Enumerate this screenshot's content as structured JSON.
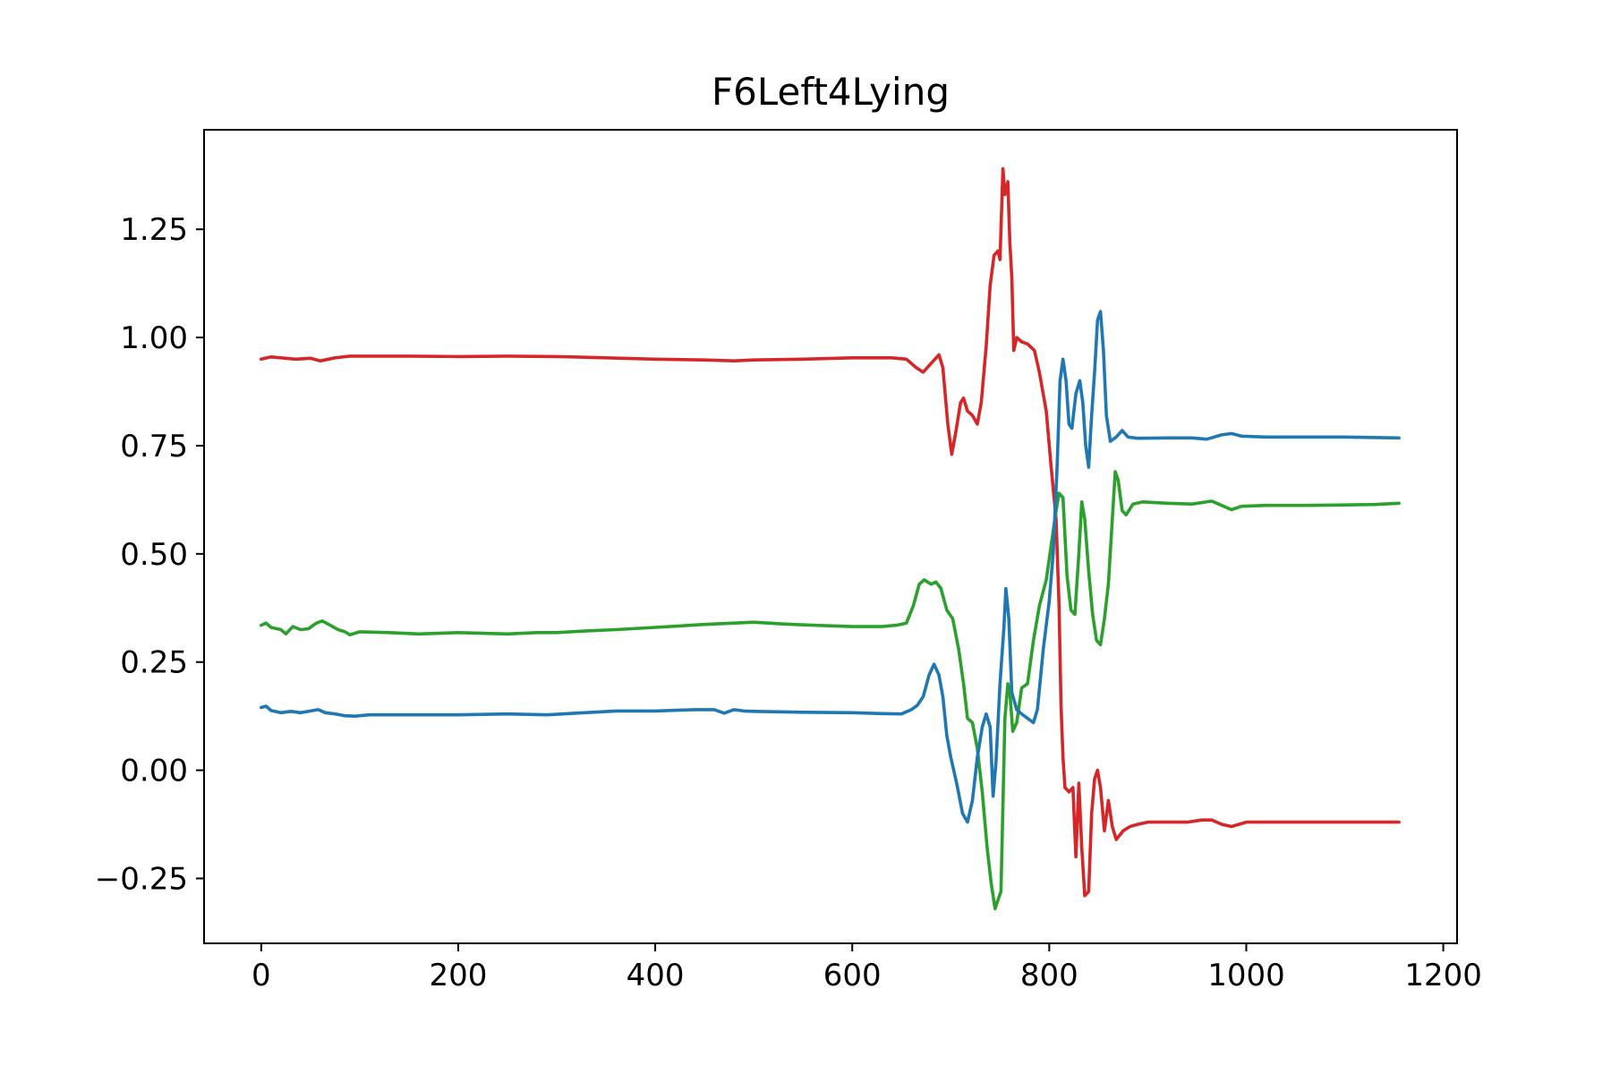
{
  "chart_data": {
    "type": "line",
    "title": "F6Left4Lying",
    "xlabel": "",
    "ylabel": "",
    "xlim": [
      -58,
      1214
    ],
    "ylim": [
      -0.4,
      1.48
    ],
    "grid": false,
    "legend": "none",
    "x_ticks": [
      {
        "value": 0,
        "label": "0"
      },
      {
        "value": 200,
        "label": "200"
      },
      {
        "value": 400,
        "label": "400"
      },
      {
        "value": 600,
        "label": "600"
      },
      {
        "value": 800,
        "label": "800"
      },
      {
        "value": 1000,
        "label": "1000"
      },
      {
        "value": 1200,
        "label": "1200"
      }
    ],
    "y_ticks": [
      {
        "value": -0.25,
        "label": "−0.25"
      },
      {
        "value": 0.0,
        "label": "0.00"
      },
      {
        "value": 0.25,
        "label": "0.25"
      },
      {
        "value": 0.5,
        "label": "0.50"
      },
      {
        "value": 0.75,
        "label": "0.75"
      },
      {
        "value": 1.0,
        "label": "1.00"
      },
      {
        "value": 1.25,
        "label": "1.25"
      }
    ],
    "series": [
      {
        "color": "#d62728",
        "points": [
          [
            0,
            0.95
          ],
          [
            10,
            0.955
          ],
          [
            20,
            0.953
          ],
          [
            35,
            0.95
          ],
          [
            50,
            0.952
          ],
          [
            60,
            0.946
          ],
          [
            75,
            0.953
          ],
          [
            90,
            0.957
          ],
          [
            150,
            0.957
          ],
          [
            200,
            0.956
          ],
          [
            250,
            0.957
          ],
          [
            300,
            0.956
          ],
          [
            350,
            0.953
          ],
          [
            400,
            0.95
          ],
          [
            450,
            0.948
          ],
          [
            480,
            0.946
          ],
          [
            500,
            0.948
          ],
          [
            550,
            0.95
          ],
          [
            600,
            0.953
          ],
          [
            640,
            0.953
          ],
          [
            655,
            0.95
          ],
          [
            665,
            0.93
          ],
          [
            672,
            0.92
          ],
          [
            680,
            0.94
          ],
          [
            688,
            0.96
          ],
          [
            692,
            0.93
          ],
          [
            697,
            0.8
          ],
          [
            701,
            0.73
          ],
          [
            705,
            0.78
          ],
          [
            710,
            0.85
          ],
          [
            713,
            0.86
          ],
          [
            717,
            0.83
          ],
          [
            722,
            0.82
          ],
          [
            727,
            0.8
          ],
          [
            731,
            0.85
          ],
          [
            736,
            0.98
          ],
          [
            740,
            1.12
          ],
          [
            744,
            1.19
          ],
          [
            748,
            1.2
          ],
          [
            750,
            1.18
          ],
          [
            753,
            1.39
          ],
          [
            755,
            1.33
          ],
          [
            758,
            1.36
          ],
          [
            760,
            1.22
          ],
          [
            762,
            1.14
          ],
          [
            764,
            0.97
          ],
          [
            767,
            1.0
          ],
          [
            772,
            0.99
          ],
          [
            778,
            0.985
          ],
          [
            785,
            0.97
          ],
          [
            790,
            0.92
          ],
          [
            797,
            0.83
          ],
          [
            802,
            0.7
          ],
          [
            807,
            0.58
          ],
          [
            810,
            0.38
          ],
          [
            812,
            0.15
          ],
          [
            814,
            0.03
          ],
          [
            816,
            -0.04
          ],
          [
            820,
            -0.05
          ],
          [
            824,
            -0.04
          ],
          [
            827,
            -0.2
          ],
          [
            830,
            -0.03
          ],
          [
            833,
            -0.18
          ],
          [
            836,
            -0.29
          ],
          [
            840,
            -0.28
          ],
          [
            843,
            -0.1
          ],
          [
            846,
            -0.02
          ],
          [
            849,
            0.0
          ],
          [
            852,
            -0.04
          ],
          [
            856,
            -0.14
          ],
          [
            860,
            -0.07
          ],
          [
            864,
            -0.13
          ],
          [
            868,
            -0.16
          ],
          [
            875,
            -0.14
          ],
          [
            882,
            -0.13
          ],
          [
            890,
            -0.125
          ],
          [
            900,
            -0.12
          ],
          [
            920,
            -0.12
          ],
          [
            940,
            -0.12
          ],
          [
            955,
            -0.115
          ],
          [
            965,
            -0.115
          ],
          [
            975,
            -0.125
          ],
          [
            985,
            -0.13
          ],
          [
            1000,
            -0.12
          ],
          [
            1050,
            -0.12
          ],
          [
            1100,
            -0.12
          ],
          [
            1155,
            -0.12
          ]
        ]
      },
      {
        "color": "#2ca02c",
        "points": [
          [
            0,
            0.335
          ],
          [
            5,
            0.34
          ],
          [
            10,
            0.33
          ],
          [
            20,
            0.325
          ],
          [
            25,
            0.315
          ],
          [
            32,
            0.332
          ],
          [
            40,
            0.325
          ],
          [
            48,
            0.327
          ],
          [
            56,
            0.34
          ],
          [
            62,
            0.345
          ],
          [
            70,
            0.335
          ],
          [
            78,
            0.325
          ],
          [
            85,
            0.32
          ],
          [
            90,
            0.313
          ],
          [
            100,
            0.32
          ],
          [
            130,
            0.318
          ],
          [
            160,
            0.315
          ],
          [
            200,
            0.318
          ],
          [
            250,
            0.315
          ],
          [
            280,
            0.318
          ],
          [
            300,
            0.318
          ],
          [
            330,
            0.322
          ],
          [
            360,
            0.325
          ],
          [
            400,
            0.33
          ],
          [
            450,
            0.337
          ],
          [
            480,
            0.34
          ],
          [
            500,
            0.342
          ],
          [
            530,
            0.338
          ],
          [
            560,
            0.335
          ],
          [
            600,
            0.332
          ],
          [
            630,
            0.332
          ],
          [
            645,
            0.335
          ],
          [
            655,
            0.34
          ],
          [
            662,
            0.38
          ],
          [
            668,
            0.43
          ],
          [
            673,
            0.44
          ],
          [
            680,
            0.43
          ],
          [
            685,
            0.435
          ],
          [
            690,
            0.42
          ],
          [
            696,
            0.37
          ],
          [
            702,
            0.35
          ],
          [
            708,
            0.28
          ],
          [
            713,
            0.2
          ],
          [
            717,
            0.12
          ],
          [
            722,
            0.11
          ],
          [
            727,
            0.05
          ],
          [
            732,
            -0.05
          ],
          [
            737,
            -0.18
          ],
          [
            741,
            -0.26
          ],
          [
            745,
            -0.32
          ],
          [
            748,
            -0.3
          ],
          [
            751,
            -0.28
          ],
          [
            755,
            0.12
          ],
          [
            758,
            0.2
          ],
          [
            760,
            0.18
          ],
          [
            763,
            0.09
          ],
          [
            767,
            0.11
          ],
          [
            772,
            0.19
          ],
          [
            778,
            0.2
          ],
          [
            784,
            0.3
          ],
          [
            790,
            0.38
          ],
          [
            797,
            0.44
          ],
          [
            802,
            0.52
          ],
          [
            807,
            0.6
          ],
          [
            810,
            0.64
          ],
          [
            814,
            0.63
          ],
          [
            818,
            0.45
          ],
          [
            822,
            0.37
          ],
          [
            826,
            0.36
          ],
          [
            830,
            0.5
          ],
          [
            833,
            0.62
          ],
          [
            836,
            0.58
          ],
          [
            840,
            0.46
          ],
          [
            844,
            0.36
          ],
          [
            848,
            0.3
          ],
          [
            852,
            0.29
          ],
          [
            856,
            0.35
          ],
          [
            860,
            0.43
          ],
          [
            864,
            0.58
          ],
          [
            867,
            0.69
          ],
          [
            870,
            0.67
          ],
          [
            874,
            0.6
          ],
          [
            878,
            0.59
          ],
          [
            885,
            0.615
          ],
          [
            895,
            0.62
          ],
          [
            920,
            0.617
          ],
          [
            945,
            0.615
          ],
          [
            965,
            0.622
          ],
          [
            975,
            0.612
          ],
          [
            985,
            0.602
          ],
          [
            995,
            0.61
          ],
          [
            1020,
            0.612
          ],
          [
            1060,
            0.612
          ],
          [
            1100,
            0.613
          ],
          [
            1130,
            0.614
          ],
          [
            1155,
            0.617
          ]
        ]
      },
      {
        "color": "#1f77b4",
        "points": [
          [
            0,
            0.145
          ],
          [
            5,
            0.148
          ],
          [
            10,
            0.138
          ],
          [
            20,
            0.133
          ],
          [
            30,
            0.136
          ],
          [
            40,
            0.133
          ],
          [
            50,
            0.137
          ],
          [
            58,
            0.14
          ],
          [
            65,
            0.133
          ],
          [
            75,
            0.13
          ],
          [
            85,
            0.126
          ],
          [
            95,
            0.125
          ],
          [
            110,
            0.128
          ],
          [
            150,
            0.128
          ],
          [
            200,
            0.128
          ],
          [
            250,
            0.13
          ],
          [
            290,
            0.128
          ],
          [
            320,
            0.132
          ],
          [
            360,
            0.137
          ],
          [
            400,
            0.137
          ],
          [
            440,
            0.14
          ],
          [
            460,
            0.14
          ],
          [
            470,
            0.132
          ],
          [
            480,
            0.14
          ],
          [
            490,
            0.137
          ],
          [
            500,
            0.136
          ],
          [
            550,
            0.134
          ],
          [
            600,
            0.133
          ],
          [
            630,
            0.131
          ],
          [
            650,
            0.13
          ],
          [
            660,
            0.14
          ],
          [
            666,
            0.15
          ],
          [
            672,
            0.17
          ],
          [
            678,
            0.22
          ],
          [
            683,
            0.245
          ],
          [
            688,
            0.22
          ],
          [
            692,
            0.17
          ],
          [
            696,
            0.08
          ],
          [
            700,
            0.03
          ],
          [
            706,
            -0.03
          ],
          [
            712,
            -0.1
          ],
          [
            717,
            -0.12
          ],
          [
            722,
            -0.07
          ],
          [
            727,
            0.03
          ],
          [
            732,
            0.1
          ],
          [
            736,
            0.13
          ],
          [
            740,
            0.1
          ],
          [
            743,
            -0.06
          ],
          [
            746,
            0.02
          ],
          [
            750,
            0.2
          ],
          [
            754,
            0.33
          ],
          [
            756,
            0.42
          ],
          [
            759,
            0.35
          ],
          [
            762,
            0.18
          ],
          [
            767,
            0.14
          ],
          [
            772,
            0.13
          ],
          [
            778,
            0.12
          ],
          [
            784,
            0.11
          ],
          [
            788,
            0.14
          ],
          [
            794,
            0.28
          ],
          [
            800,
            0.39
          ],
          [
            804,
            0.5
          ],
          [
            808,
            0.7
          ],
          [
            811,
            0.9
          ],
          [
            814,
            0.95
          ],
          [
            817,
            0.9
          ],
          [
            820,
            0.8
          ],
          [
            823,
            0.79
          ],
          [
            827,
            0.87
          ],
          [
            831,
            0.9
          ],
          [
            834,
            0.85
          ],
          [
            837,
            0.75
          ],
          [
            840,
            0.7
          ],
          [
            843,
            0.82
          ],
          [
            846,
            0.92
          ],
          [
            849,
            1.04
          ],
          [
            852,
            1.06
          ],
          [
            855,
            0.97
          ],
          [
            858,
            0.82
          ],
          [
            862,
            0.76
          ],
          [
            868,
            0.77
          ],
          [
            874,
            0.785
          ],
          [
            880,
            0.77
          ],
          [
            890,
            0.767
          ],
          [
            920,
            0.768
          ],
          [
            945,
            0.768
          ],
          [
            960,
            0.765
          ],
          [
            975,
            0.775
          ],
          [
            985,
            0.778
          ],
          [
            995,
            0.772
          ],
          [
            1020,
            0.77
          ],
          [
            1060,
            0.77
          ],
          [
            1100,
            0.77
          ],
          [
            1155,
            0.768
          ]
        ]
      }
    ]
  }
}
